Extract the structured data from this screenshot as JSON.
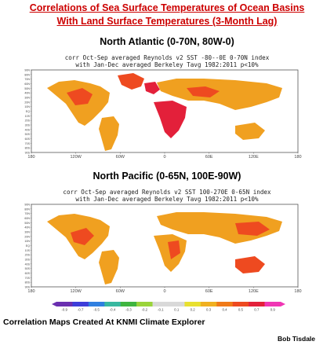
{
  "title": {
    "line1": "Correlations of Sea Surface Temperatures of Ocean Basins",
    "line2": "With Land Surface Temperatures (3-Month Lag)"
  },
  "panels": [
    {
      "heading": "North Atlantic (0-70N, 80W-0)",
      "subtitle_line1": "corr Oct-Sep averaged Reynolds v2 SST -80--0E 0-70N index",
      "subtitle_line2": "with Jan-Dec averaged Berkeley Tavg 1982:2011 p<10%",
      "lat_labels": [
        "90N",
        "80N",
        "70N",
        "60N",
        "50N",
        "40N",
        "30N",
        "20N",
        "10N",
        "EQ",
        "10S",
        "20S",
        "30S",
        "40S",
        "50S",
        "60S",
        "70S",
        "80S",
        "90S"
      ],
      "lon_labels": [
        "180",
        "120W",
        "60W",
        "0",
        "60E",
        "120E",
        "180"
      ]
    },
    {
      "heading": "North Pacific (0-65N, 100E-90W)",
      "subtitle_line1": "corr Oct-Sep averaged Reynolds v2 SST 100-270E 0-65N index",
      "subtitle_line2": "with Jan-Dec averaged Berkeley Tavg 1982:2011 p<10%",
      "lat_labels": [
        "90N",
        "80N",
        "70N",
        "60N",
        "50N",
        "40N",
        "30N",
        "20N",
        "10N",
        "EQ",
        "10S",
        "20S",
        "30S",
        "40S",
        "50S",
        "60S",
        "70S",
        "80S",
        "90S"
      ],
      "lon_labels": [
        "180",
        "120W",
        "60W",
        "0",
        "60E",
        "120E",
        "180"
      ]
    }
  ],
  "colorbar": {
    "labels": [
      "-0.9",
      "-0.7",
      "-0.5",
      "-0.4",
      "-0.3",
      "-0.2",
      "-0.1",
      "0.1",
      "0.2",
      "0.3",
      "0.4",
      "0.5",
      "0.7",
      "0.9"
    ],
    "colors": [
      "#6a2fb0",
      "#3d3dd9",
      "#2f7fe0",
      "#38b8a0",
      "#3fb53f",
      "#9ad43a",
      "#d9d9d9",
      "#d9d9d9",
      "#e8e030",
      "#f0b020",
      "#f07a18",
      "#ee4a20",
      "#e3203a",
      "#f036b4"
    ]
  },
  "footer": {
    "left": "Correlation Maps Created At KNMI Climate Explorer",
    "right": "Bob Tisdale"
  },
  "colors": {
    "title": "#cc0000",
    "land_positive": "#f0a020",
    "land_strong": "#ee4a20",
    "land_very_strong": "#e3203a"
  }
}
